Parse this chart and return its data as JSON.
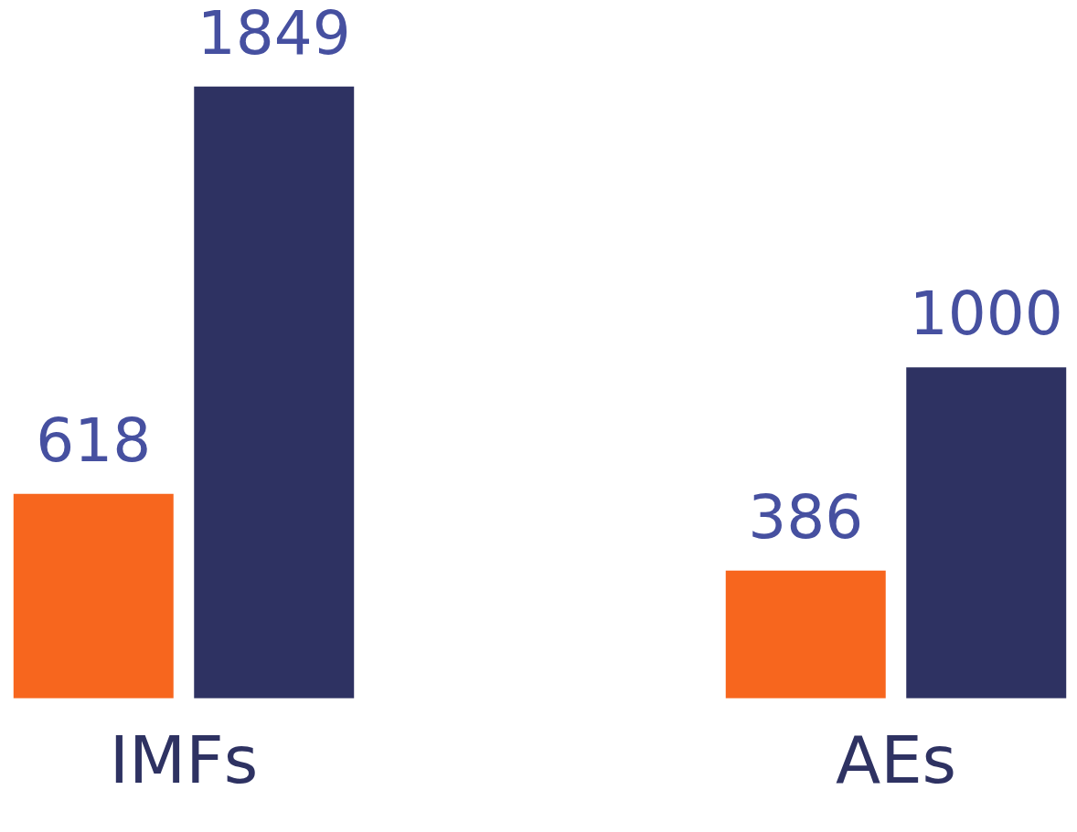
{
  "chart_data": {
    "type": "bar",
    "categories": [
      "IMFs",
      "AEs"
    ],
    "series": [
      {
        "color": "#f7661e",
        "values": [
          618,
          386
        ]
      },
      {
        "color": "#2e3262",
        "values": [
          1849,
          1000
        ]
      }
    ],
    "data_labels": true,
    "grid": false,
    "legend": false
  }
}
